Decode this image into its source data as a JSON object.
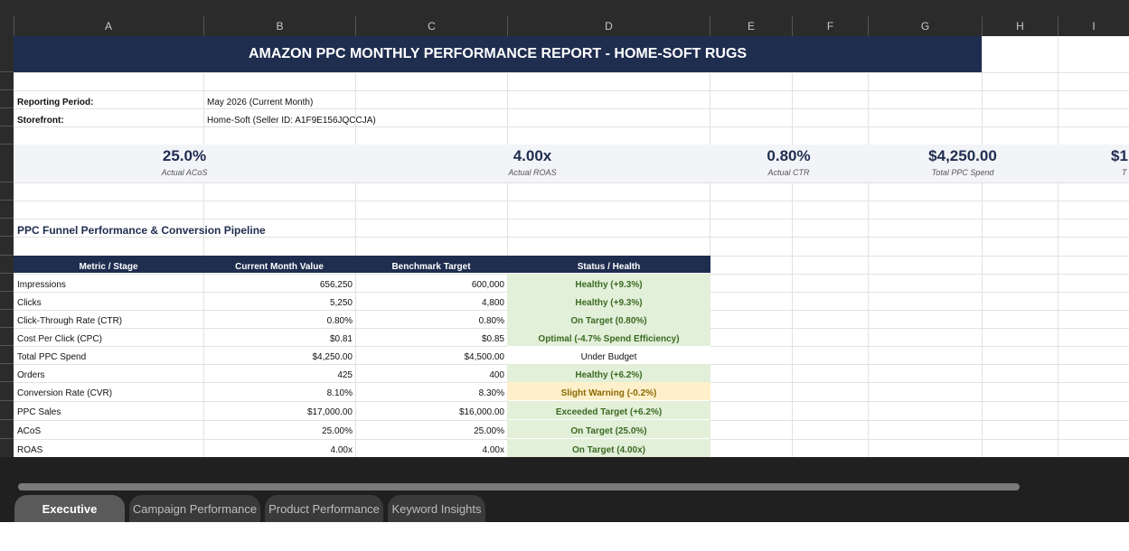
{
  "columns": [
    "A",
    "B",
    "C",
    "D",
    "E",
    "F",
    "G",
    "H",
    "I"
  ],
  "report": {
    "title": "AMAZON PPC MONTHLY PERFORMANCE REPORT - HOME-SOFT RUGS",
    "period_label": "Reporting Period:",
    "period_value": "May 2026 (Current Month)",
    "storefront_label": "Storefront:",
    "storefront_value": "Home-Soft (Seller ID: A1F9E156JQCCJA)"
  },
  "kpis": [
    {
      "value": "25.0%",
      "label": "Actual ACoS"
    },
    {
      "value": "4.00x",
      "label": "Actual ROAS"
    },
    {
      "value": "0.80%",
      "label": "Actual CTR"
    },
    {
      "value": "$4,250.00",
      "label": "Total PPC Spend"
    },
    {
      "value": "$1",
      "label": "T"
    }
  ],
  "funnel": {
    "section_title": "PPC Funnel Performance & Conversion Pipeline",
    "headers": [
      "Metric / Stage",
      "Current Month Value",
      "Benchmark Target",
      "Status / Health"
    ],
    "rows": [
      {
        "metric": "Impressions",
        "current": "656,250",
        "benchmark": "600,000",
        "status": "Healthy (+9.3%)",
        "tone": "good"
      },
      {
        "metric": "Clicks",
        "current": "5,250",
        "benchmark": "4,800",
        "status": "Healthy (+9.3%)",
        "tone": "good"
      },
      {
        "metric": "Click-Through Rate (CTR)",
        "current": "0.80%",
        "benchmark": "0.80%",
        "status": "On Target (0.80%)",
        "tone": "good"
      },
      {
        "metric": "Cost Per Click (CPC)",
        "current": "$0.81",
        "benchmark": "$0.85",
        "status": "Optimal (-4.7% Spend Efficiency)",
        "tone": "good"
      },
      {
        "metric": "Total PPC Spend",
        "current": "$4,250.00",
        "benchmark": "$4,500.00",
        "status": "Under Budget",
        "tone": "neutral"
      },
      {
        "metric": "Orders",
        "current": "425",
        "benchmark": "400",
        "status": "Healthy (+6.2%)",
        "tone": "good"
      },
      {
        "metric": "Conversion Rate (CVR)",
        "current": "8.10%",
        "benchmark": "8.30%",
        "status": "Slight Warning (-0.2%)",
        "tone": "warn"
      },
      {
        "metric": "PPC Sales",
        "current": "$17,000.00",
        "benchmark": "$16,000.00",
        "status": "Exceeded Target (+6.2%)",
        "tone": "good"
      },
      {
        "metric": "ACoS",
        "current": "25.00%",
        "benchmark": "25.00%",
        "status": "On Target (25.0%)",
        "tone": "good"
      },
      {
        "metric": "ROAS",
        "current": "4.00x",
        "benchmark": "4.00x",
        "status": "On Target (4.00x)",
        "tone": "good"
      }
    ]
  },
  "tone_colors": {
    "good_bg": "#e2efd9",
    "good_fg": "#3b6b22",
    "warn_bg": "#fff0cc",
    "warn_fg": "#8a6a00",
    "neutral_bg": "#ffffff",
    "neutral_fg": "#111111"
  },
  "sheet_tabs": [
    {
      "label": "Executive Summary",
      "active": true
    },
    {
      "label": "Campaign Performance",
      "active": false
    },
    {
      "label": "Product Performance",
      "active": false
    },
    {
      "label": "Keyword Insights",
      "active": false
    }
  ]
}
